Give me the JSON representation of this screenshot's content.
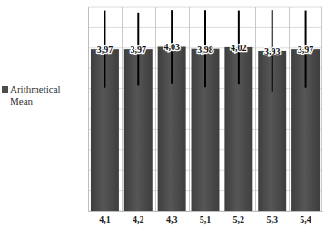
{
  "chart_data": {
    "type": "bar",
    "categories": [
      "4,1",
      "4,2",
      "4,3",
      "5,1",
      "5,2",
      "5,3",
      "5,4"
    ],
    "series": [
      {
        "name": "Arithmetical Mean",
        "color": "#4d4d4d",
        "values": [
          3.97,
          3.97,
          4.03,
          3.98,
          4.02,
          3.93,
          3.97
        ],
        "value_labels": [
          "3,97",
          "3,97",
          "4,03",
          "3,98",
          "4,02",
          "3,93",
          "3,97"
        ],
        "errors": [
          0.95,
          0.9,
          0.9,
          0.95,
          0.9,
          1.0,
          0.95
        ]
      }
    ],
    "ylim": [
      0,
      5
    ],
    "yticks": [
      0,
      0.5,
      1,
      1.5,
      2,
      2.5,
      3,
      3.5,
      4,
      4.5,
      5
    ],
    "grid": true,
    "legend": "left",
    "data_labels": true,
    "tick_labels": "x"
  }
}
